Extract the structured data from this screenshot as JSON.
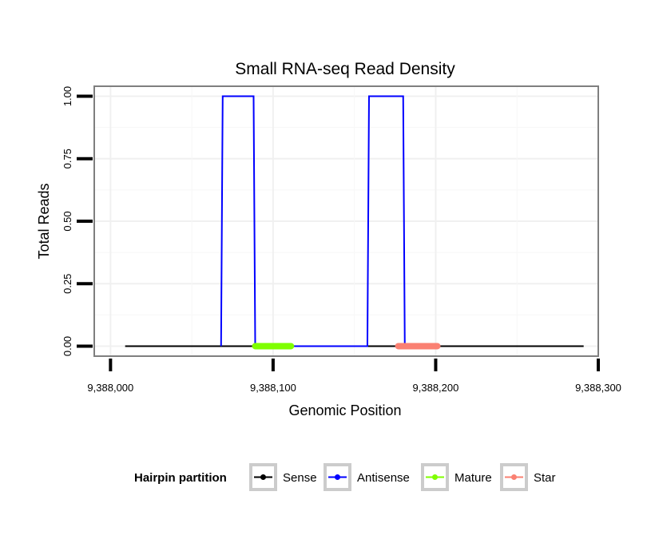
{
  "chart_data": {
    "type": "line",
    "title": "Small RNA-seq Read Density",
    "xlabel": "Genomic Position",
    "ylabel": "Total Reads",
    "xlim": [
      9387990,
      9388300
    ],
    "ylim": [
      -0.04,
      1.04
    ],
    "x_ticks": [
      {
        "value": 9388000,
        "label": "9,388,000"
      },
      {
        "value": 9388100,
        "label": "9,388,100"
      },
      {
        "value": 9388200,
        "label": "9,388,200"
      },
      {
        "value": 9388300,
        "label": "9,388,300"
      }
    ],
    "y_ticks": [
      {
        "value": 0,
        "label": "0.00"
      },
      {
        "value": 0.25,
        "label": "0.25"
      },
      {
        "value": 0.5,
        "label": "0.50"
      },
      {
        "value": 0.75,
        "label": "0.75"
      },
      {
        "value": 1,
        "label": "1.00"
      }
    ],
    "grid": true,
    "legend": {
      "title": "Hairpin partition",
      "position": "bottom",
      "entries": [
        {
          "name": "Sense",
          "color": "#000000"
        },
        {
          "name": "Antisense",
          "color": "#0000ff"
        },
        {
          "name": "Mature",
          "color": "#7fff00"
        },
        {
          "name": "Star",
          "color": "#fa8072"
        }
      ]
    },
    "series": [
      {
        "name": "Sense",
        "color": "#000000",
        "kind": "line",
        "x": [
          9388009,
          9388291
        ],
        "y": [
          0,
          0
        ]
      },
      {
        "name": "Antisense",
        "color": "#0000ff",
        "kind": "line",
        "x": [
          9388068,
          9388069,
          9388088,
          9388089,
          9388158,
          9388159,
          9388180,
          9388181
        ],
        "y": [
          0,
          1,
          1,
          0,
          0,
          1,
          1,
          0
        ]
      },
      {
        "name": "Mature",
        "color": "#7fff00",
        "kind": "segment",
        "x": [
          9388089,
          9388111
        ],
        "y": [
          0,
          0
        ]
      },
      {
        "name": "Star",
        "color": "#fa8072",
        "kind": "segment",
        "x": [
          9388177,
          9388201
        ],
        "y": [
          0,
          0
        ]
      }
    ]
  }
}
